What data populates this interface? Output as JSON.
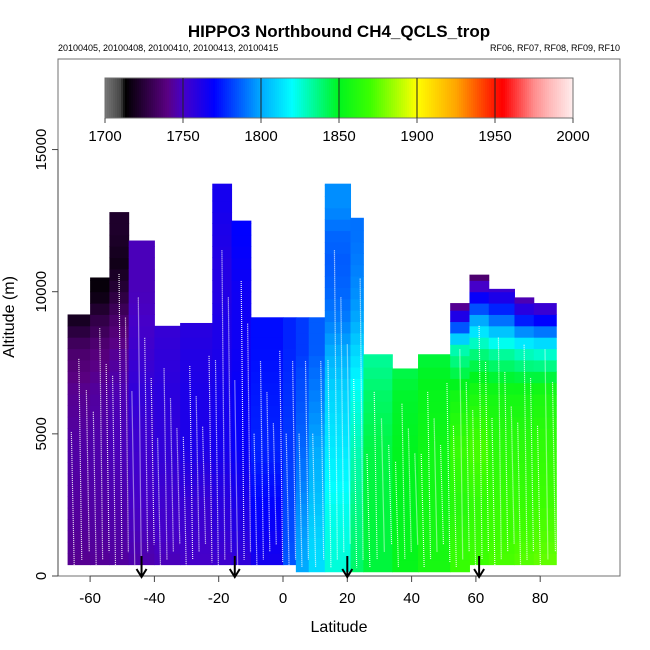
{
  "chart_data": {
    "type": "heatmap",
    "title": "HIPPO3 Northbound CH4_QCLS_trop",
    "subtitle_left": "20100405, 20100408, 20100410, 20100413, 20100415",
    "subtitle_right": "RF06, RF07, RF08, RF09, RF10",
    "xlabel": "Latitude",
    "ylabel": "Altitude (m)",
    "xlim": [
      -72,
      90
    ],
    "ylim": [
      0,
      17000
    ],
    "x_ticks": [
      -60,
      -40,
      -20,
      0,
      20,
      40,
      60,
      80
    ],
    "x_tick_labels": [
      "-60",
      "-40",
      "-20",
      "0",
      "20",
      "40",
      "60",
      "80"
    ],
    "y_ticks": [
      0,
      5000,
      10000,
      15000
    ],
    "y_tick_labels": [
      "0",
      "5000",
      "10000",
      "15000"
    ],
    "colorbar": {
      "range": [
        1700,
        2000
      ],
      "ticks": [
        1700,
        1750,
        1800,
        1850,
        1900,
        1950,
        2000
      ],
      "tick_labels": [
        "1700",
        "1750",
        "1800",
        "1850",
        "1900",
        "1950",
        "2000"
      ],
      "placement": "top"
    },
    "profile_markers_latitude": [
      -44,
      -15,
      20,
      61
    ],
    "altitude_levels": [
      500,
      2500,
      4500,
      6500,
      8000,
      9000,
      10000,
      11000,
      12000,
      13000
    ],
    "columns": [
      {
        "lat_min": -67,
        "lat_max": -60,
        "top": 9200,
        "ch4": [
          1742,
          1744,
          1745,
          1742,
          1735,
          1720
        ]
      },
      {
        "lat_min": -60,
        "lat_max": -54,
        "top": 10500,
        "ch4": [
          1743,
          1745,
          1746,
          1744,
          1738,
          1728,
          1715
        ]
      },
      {
        "lat_min": -54,
        "lat_max": -48,
        "top": 12800,
        "ch4": [
          1744,
          1746,
          1748,
          1747,
          1742,
          1735,
          1725,
          1718,
          1722
        ]
      },
      {
        "lat_min": -48,
        "lat_max": -40,
        "top": 11800,
        "ch4": [
          1746,
          1750,
          1752,
          1756,
          1752,
          1750,
          1748,
          1748
        ]
      },
      {
        "lat_min": -40,
        "lat_max": -32,
        "top": 8800,
        "ch4": [
          1748,
          1752,
          1756,
          1758,
          1756,
          1754
        ]
      },
      {
        "lat_min": -32,
        "lat_max": -22,
        "top": 8900,
        "ch4": [
          1750,
          1754,
          1762,
          1762,
          1760,
          1758
        ]
      },
      {
        "lat_min": -22,
        "lat_max": -16,
        "top": 13800,
        "ch4": [
          1752,
          1758,
          1764,
          1764,
          1762,
          1762,
          1760,
          1760,
          1762,
          1764
        ]
      },
      {
        "lat_min": -16,
        "lat_max": -10,
        "top": 12500,
        "ch4": [
          1756,
          1762,
          1768,
          1768,
          1766,
          1766,
          1766,
          1768,
          1770
        ]
      },
      {
        "lat_min": -10,
        "lat_max": 0,
        "top": 9100,
        "ch4": [
          1764,
          1770,
          1776,
          1774,
          1772,
          1772
        ]
      },
      {
        "lat_min": 0,
        "lat_max": 4,
        "top": 9100,
        "ch4": [
          1785,
          1782,
          1780,
          1778,
          1776,
          1776
        ]
      },
      {
        "lat_min": 4,
        "lat_max": 8,
        "top": 9100,
        "ch4": [
          1800,
          1795,
          1788,
          1784,
          1780,
          1780
        ]
      },
      {
        "lat_min": 8,
        "lat_max": 13,
        "top": 9100,
        "ch4": [
          1812,
          1806,
          1800,
          1792,
          1786,
          1786
        ]
      },
      {
        "lat_min": 13,
        "lat_max": 21,
        "top": 13800,
        "ch4": [
          1825,
          1822,
          1815,
          1810,
          1800,
          1792,
          1788,
          1786,
          1788,
          1795
        ]
      },
      {
        "lat_min": 21,
        "lat_max": 25,
        "top": 12600,
        "ch4": [
          1840,
          1836,
          1830,
          1822,
          1810,
          1800,
          1795,
          1792,
          1790
        ]
      },
      {
        "lat_min": 25,
        "lat_max": 34,
        "top": 7800,
        "ch4": [
          1846,
          1846,
          1845,
          1840,
          1832
        ]
      },
      {
        "lat_min": 34,
        "lat_max": 42,
        "top": 7300,
        "ch4": [
          1852,
          1850,
          1850,
          1848,
          1840
        ]
      },
      {
        "lat_min": 42,
        "lat_max": 52,
        "top": 7800,
        "ch4": [
          1858,
          1856,
          1855,
          1852,
          1845
        ]
      },
      {
        "lat_min": 52,
        "lat_max": 58,
        "top": 9600,
        "ch4": [
          1868,
          1862,
          1868,
          1855,
          1830,
          1770,
          1712
        ]
      },
      {
        "lat_min": 58,
        "lat_max": 64,
        "top": 10600,
        "ch4": [
          1870,
          1866,
          1872,
          1858,
          1835,
          1800,
          1760,
          1712
        ]
      },
      {
        "lat_min": 64,
        "lat_max": 72,
        "top": 10100,
        "ch4": [
          1872,
          1868,
          1864,
          1856,
          1830,
          1790,
          1755,
          1715
        ]
      },
      {
        "lat_min": 72,
        "lat_max": 78,
        "top": 9800,
        "ch4": [
          1874,
          1868,
          1864,
          1856,
          1825,
          1775,
          1735
        ]
      },
      {
        "lat_min": 78,
        "lat_max": 85,
        "top": 9600,
        "ch4": [
          1876,
          1870,
          1866,
          1858,
          1822,
          1770,
          1730
        ]
      }
    ]
  }
}
